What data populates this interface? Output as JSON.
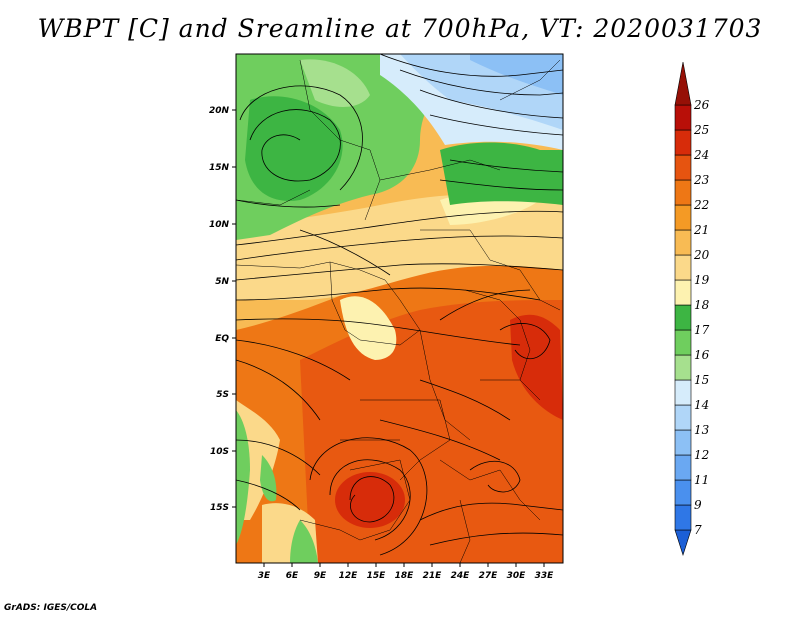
{
  "title": "WBPT [C] and Sreamline at 700hPa, VT: 2020031703",
  "credit": "GrADS: IGES/COLA",
  "map": {
    "lat_labels": [
      "20N",
      "15N",
      "10N",
      "5N",
      "EQ",
      "5S",
      "10S",
      "15S"
    ],
    "lon_labels": [
      "3E",
      "6E",
      "9E",
      "12E",
      "15E",
      "18E",
      "21E",
      "24E",
      "27E",
      "30E",
      "33E"
    ]
  },
  "colorbar": {
    "labels": [
      "7",
      "9",
      "11",
      "12",
      "13",
      "14",
      "15",
      "16",
      "17",
      "18",
      "19",
      "20",
      "21",
      "22",
      "23",
      "24",
      "25",
      "26"
    ],
    "colors": [
      "#1c5fd6",
      "#2f77e6",
      "#4a90ee",
      "#6aa8f2",
      "#8cc0f5",
      "#b0d6f8",
      "#d6ecfb",
      "#a6e08e",
      "#6fce5e",
      "#3db543",
      "#fdf2b0",
      "#fbd98a",
      "#f8bb54",
      "#f49a25",
      "#ee7715",
      "#e65410",
      "#d72c0a",
      "#b80f08",
      "#961006"
    ]
  }
}
